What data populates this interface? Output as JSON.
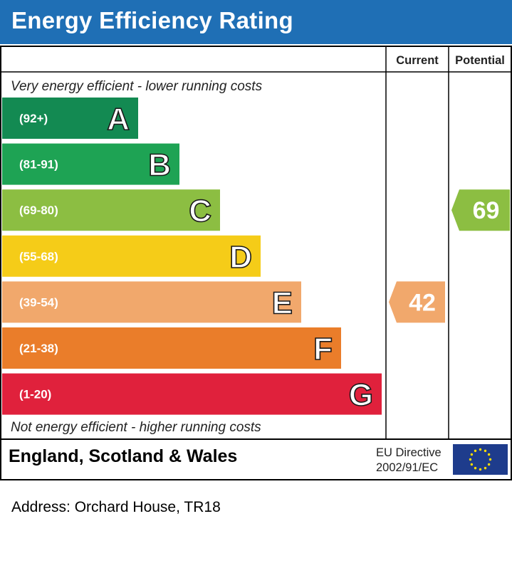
{
  "title": "Energy Efficiency Rating",
  "columns": {
    "current": "Current",
    "potential": "Potential"
  },
  "top_note": "Very energy efficient - lower running costs",
  "bottom_note": "Not energy efficient - higher running costs",
  "footer": {
    "region": "England, Scotland & Wales",
    "directive_line1": "EU Directive",
    "directive_line2": "2002/91/EC",
    "flag_icon": "eu-flag-icon"
  },
  "address": "Address: Orchard House, TR18",
  "chart_data": {
    "type": "bar",
    "categories": [
      "A",
      "B",
      "C",
      "D",
      "E",
      "F",
      "G"
    ],
    "ranges": [
      "(92+)",
      "(81-91)",
      "(69-80)",
      "(55-68)",
      "(39-54)",
      "(21-38)",
      "(1-20)"
    ],
    "colors": [
      "#138a52",
      "#1ea354",
      "#8cbe42",
      "#f5cc18",
      "#f1a86c",
      "#ea7d2a",
      "#e0213c"
    ],
    "current": {
      "value": 42,
      "band": "E",
      "color": "#f1a86c"
    },
    "potential": {
      "value": 69,
      "band": "C",
      "color": "#8cbe42"
    }
  }
}
